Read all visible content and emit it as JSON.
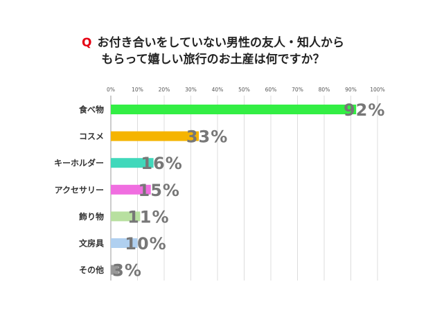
{
  "title": {
    "q_mark": "Q",
    "line1": "お付き合いをしていない男性の友人・知人から",
    "line2": "もらって嬉しい旅行のお土産は何ですか？"
  },
  "chart_data": {
    "type": "bar",
    "orientation": "horizontal",
    "categories": [
      "食べ物",
      "コスメ",
      "キーホルダー",
      "アクセサリー",
      "飾り物",
      "文房具",
      "その他"
    ],
    "values": [
      92,
      33,
      16,
      15,
      11,
      10,
      3
    ],
    "value_labels": [
      "92%",
      "33%",
      "16%",
      "15%",
      "11%",
      "10%",
      "3%"
    ],
    "colors": [
      "#33ee44",
      "#f5b400",
      "#40d8bb",
      "#f06ee0",
      "#b8e0a0",
      "#b0d0f0",
      "#999999"
    ],
    "xlim": [
      0,
      100
    ],
    "xticks": [
      "0%",
      "10%",
      "20%",
      "30%",
      "40%",
      "50%",
      "60%",
      "70%",
      "80%",
      "90%",
      "100%"
    ],
    "grid": true
  }
}
